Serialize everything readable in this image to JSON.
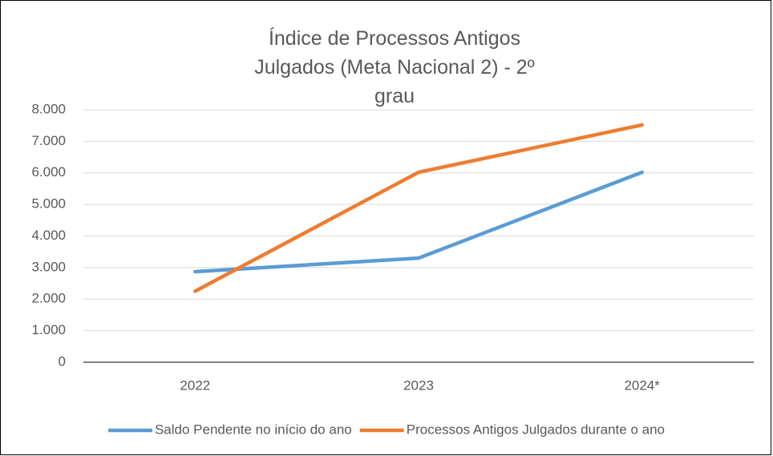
{
  "chart_data": {
    "type": "line",
    "title": "Índice de Processos Antigos Julgados (Meta Nacional 2) - 2º grau",
    "categories": [
      "2022",
      "2023",
      "2024*"
    ],
    "series": [
      {
        "name": "Saldo Pendente no início do ano",
        "color": "#5b9bd5",
        "values": [
          2870,
          3300,
          6020
        ]
      },
      {
        "name": "Processos Antigos Julgados durante o ano",
        "color": "#ed7d31",
        "values": [
          2250,
          6020,
          7520
        ]
      }
    ],
    "ylim": [
      0,
      8000
    ],
    "yticks": [
      0,
      {
        "value": 1000,
        "label": "1.000"
      },
      {
        "value": 2000,
        "label": "2.000"
      },
      {
        "value": 3000,
        "label": "3.000"
      },
      {
        "value": 4000,
        "label": "4.000"
      },
      {
        "value": 5000,
        "label": "5.000"
      },
      {
        "value": 6000,
        "label": "6.000"
      },
      {
        "value": 7000,
        "label": "7.000"
      },
      {
        "value": 8000,
        "label": "8.000"
      }
    ],
    "grid": true,
    "legend": "bottom"
  }
}
